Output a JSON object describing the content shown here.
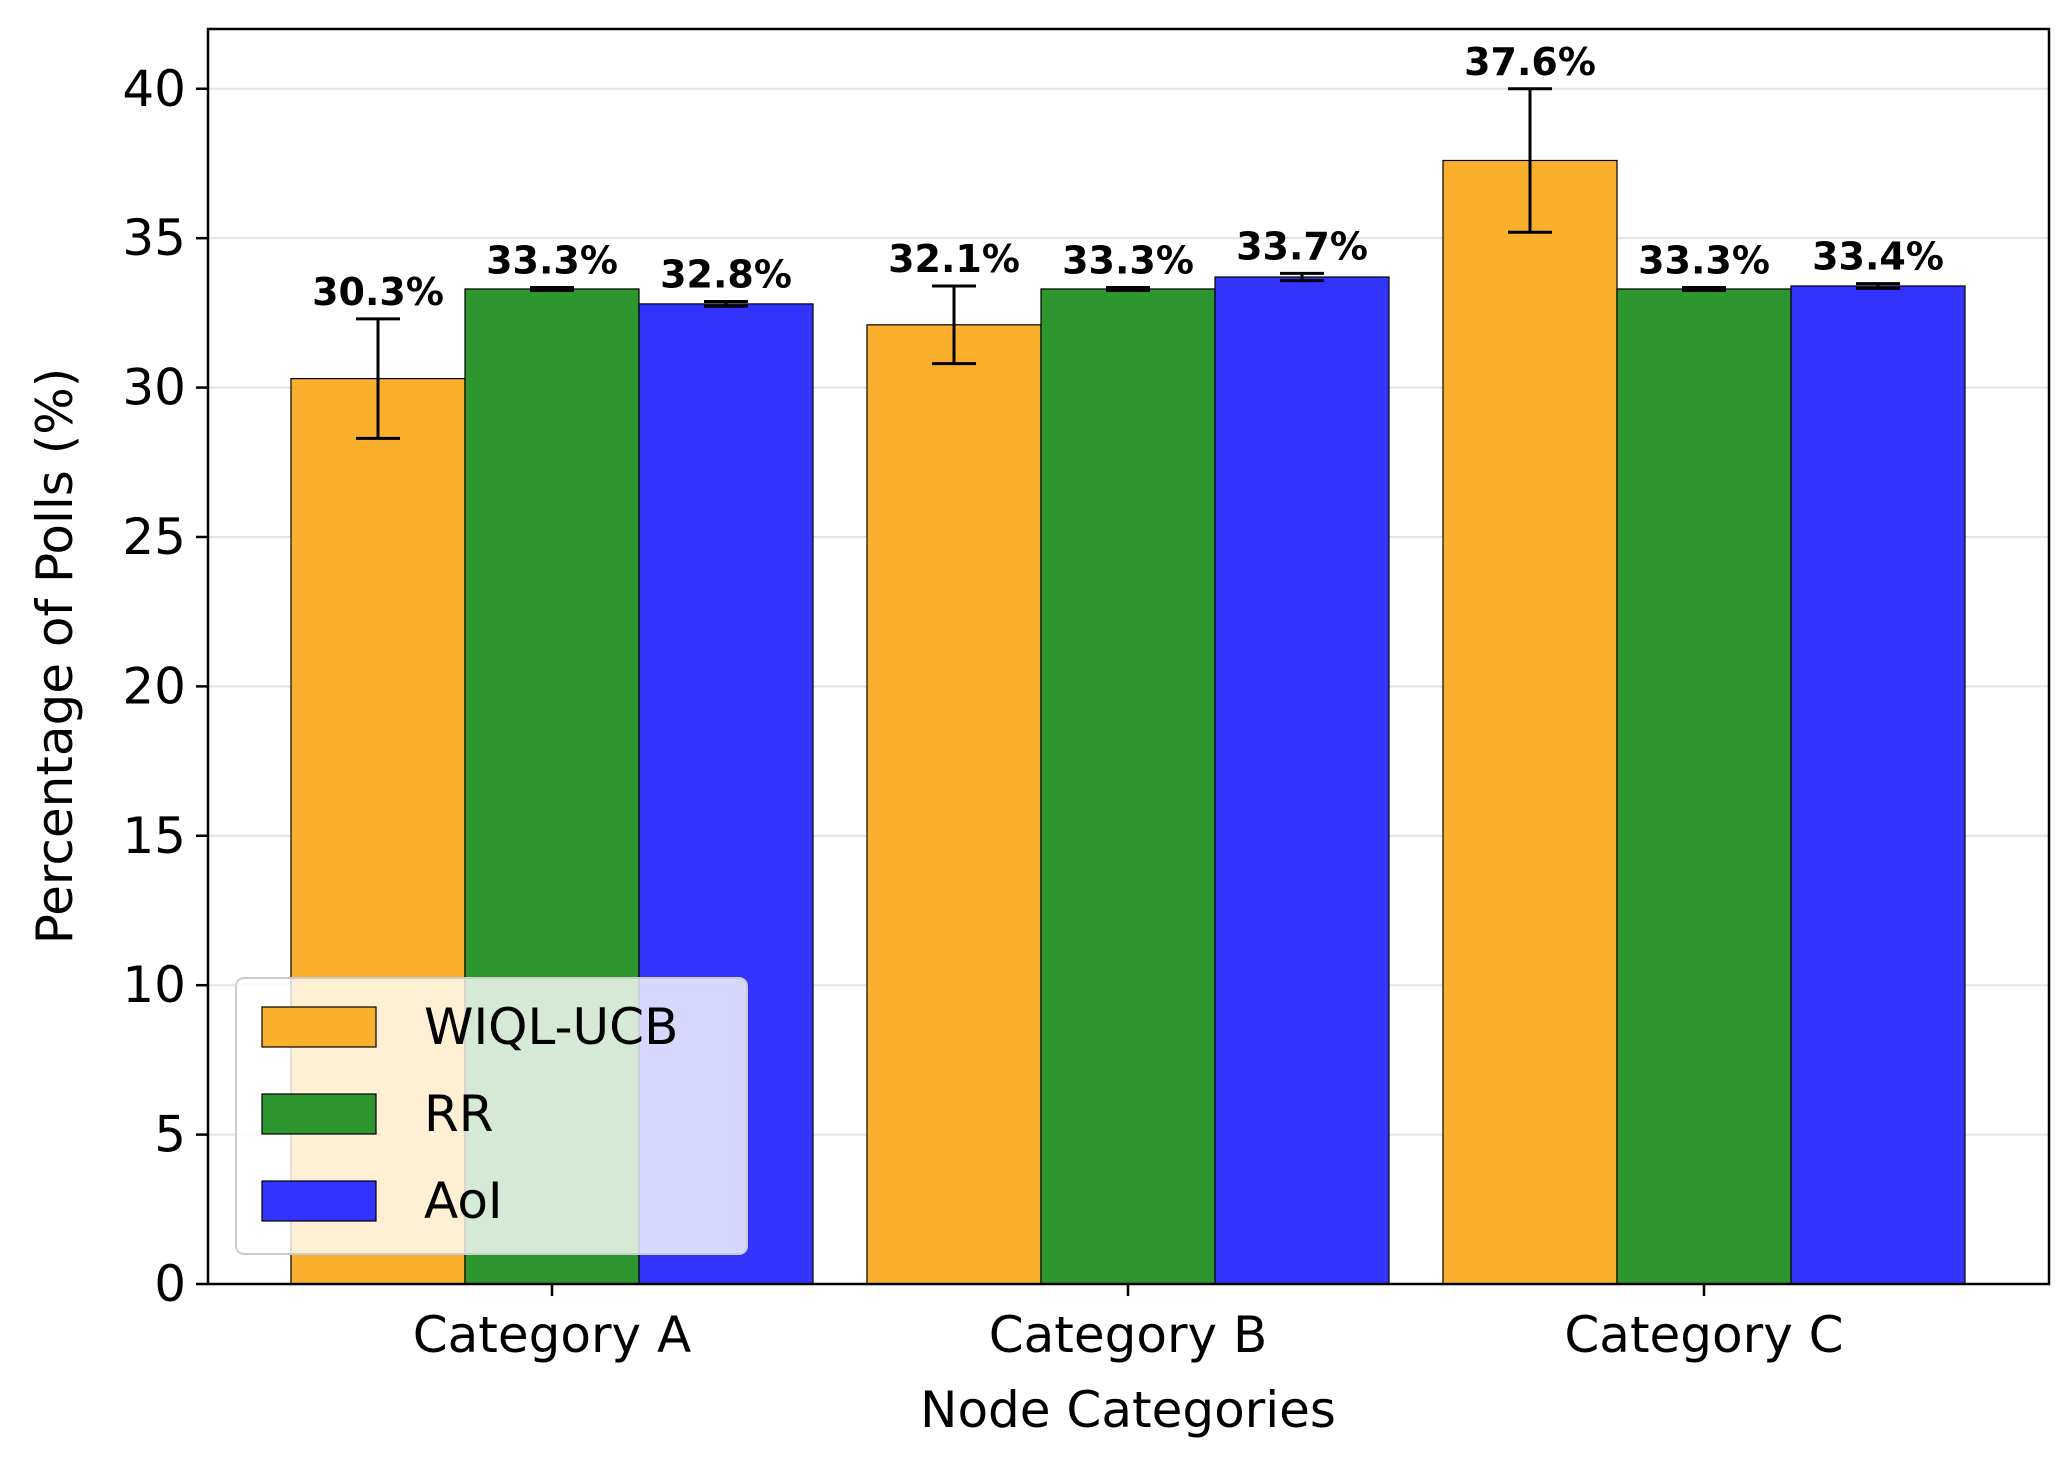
{
  "chart_data": {
    "type": "bar",
    "xlabel": "Node Categories",
    "ylabel": "Percentage of Polls (%)",
    "categories": [
      "Category A",
      "Category B",
      "Category C"
    ],
    "ylim": [
      0,
      42
    ],
    "yticks": [
      0,
      5,
      10,
      15,
      20,
      25,
      30,
      35,
      40
    ],
    "grid": "horizontal",
    "legend_position": "lower-left",
    "series": [
      {
        "name": "WIQL-UCB",
        "color": "#FBB02D",
        "values": [
          30.3,
          32.1,
          37.6
        ],
        "errors": [
          2.0,
          1.3,
          2.4
        ],
        "labels": [
          "30.3%",
          "32.1%",
          "37.6%"
        ]
      },
      {
        "name": "RR",
        "color": "#2E962E",
        "values": [
          33.3,
          33.3,
          33.3
        ],
        "errors": [
          0.05,
          0.05,
          0.05
        ],
        "labels": [
          "33.3%",
          "33.3%",
          "33.3%"
        ]
      },
      {
        "name": "AoI",
        "color": "#3333FF",
        "values": [
          32.8,
          33.7,
          33.4
        ],
        "errors": [
          0.08,
          0.12,
          0.08
        ],
        "labels": [
          "32.8%",
          "33.7%",
          "33.4%"
        ]
      }
    ]
  }
}
